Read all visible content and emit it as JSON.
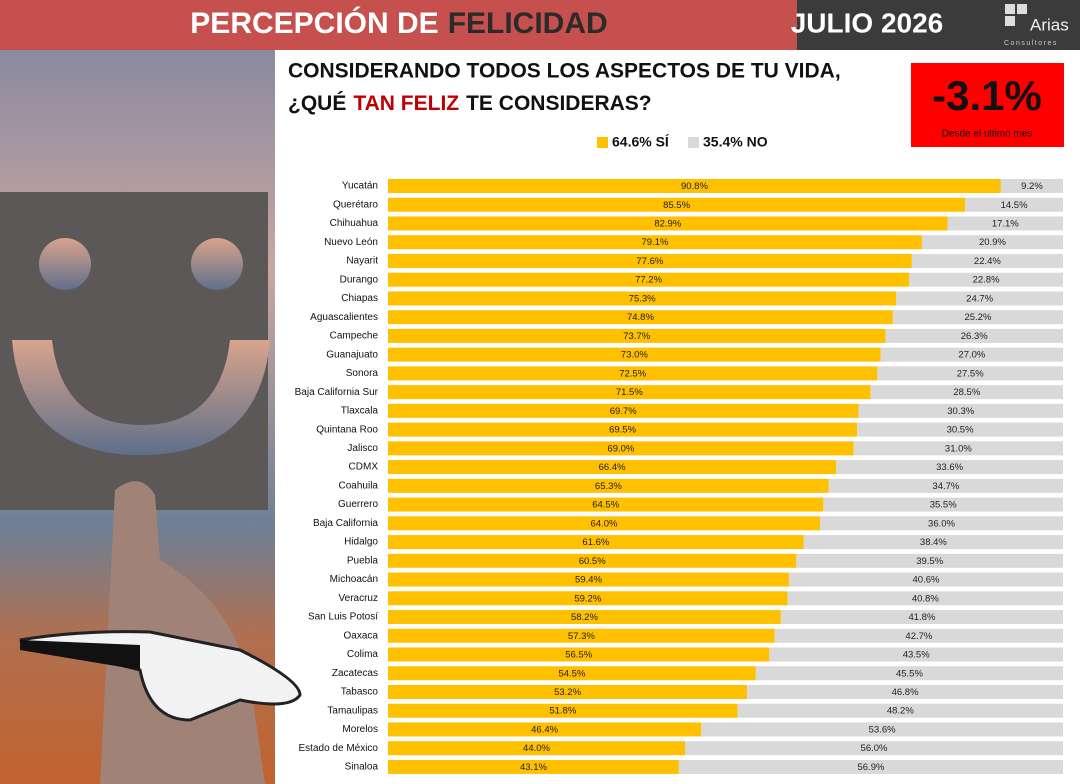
{
  "header": {
    "title": [
      "PERCEPCIÓN DE",
      "FELICIDAD"
    ],
    "date": "JULIO 2026",
    "logo": "Arias",
    "logo_sub": "Consultores"
  },
  "highlight": {
    "value": "-3.1%",
    "caption": "Desde el ultimo mes"
  },
  "chart_data": {
    "type": "stacked-bar-horizontal",
    "question": [
      "CONSIDERANDO TODOS LOS ASPECTOS DE TU VIDA,",
      "¿QUÉ",
      "TAN FELIZ",
      "TE CONSIDERAS?"
    ],
    "categories": [
      "Yucatán",
      "Querétaro",
      "Chihuahua",
      "Nuevo León",
      "Nayarit",
      "Durango",
      "Chiapas",
      "Aguascalientes",
      "Campeche",
      "Guanajuato",
      "Sonora",
      "Baja California Sur",
      "Tlaxcala",
      "Quintana Roo",
      "Jalisco",
      "CDMX",
      "Coahuila",
      "Guerrero",
      "Baja California",
      "Hidalgo",
      "Puebla",
      "Michoacán",
      "Veracruz",
      "San Luis Potosí",
      "Oaxaca",
      "Colima",
      "Zacatecas",
      "Tabasco",
      "Tamaulipas",
      "Morelos",
      "Estado de México",
      "Sinaloa"
    ],
    "xlim": [
      0,
      100
    ],
    "series": [
      {
        "name": "64.6% SÍ",
        "color": "#ffc000",
        "values": [
          90.8,
          85.5,
          82.9,
          79.1,
          77.6,
          77.2,
          75.3,
          74.8,
          73.7,
          73.0,
          72.5,
          71.5,
          69.7,
          69.5,
          69.0,
          66.4,
          65.3,
          64.5,
          64.0,
          61.6,
          60.5,
          59.4,
          59.2,
          58.2,
          57.3,
          56.5,
          54.5,
          53.2,
          51.8,
          46.4,
          44.0,
          43.1
        ],
        "value_labels": [
          "90.8%",
          "85.5%",
          "82.9%",
          "79.1%",
          "77.6%",
          "77.2%",
          "75.3%",
          "74.8%",
          "73.7%",
          "73.0%",
          "72.5%",
          "71.5%",
          "69.7%",
          "69.5%",
          "69.0%",
          "66.4%",
          "65.3%",
          "64.5%",
          "64.0%",
          "61.6%",
          "60.5%",
          "59.4%",
          "59.2%",
          "58.2%",
          "57.3%",
          "56.5%",
          "54.5%",
          "53.2%",
          "51.8%",
          "46.4%",
          "44.0%",
          "43.1%"
        ]
      },
      {
        "name": "35.4% NO",
        "color": "#d9d9d9",
        "values": [
          9.2,
          14.5,
          17.1,
          20.9,
          22.4,
          22.8,
          24.7,
          25.2,
          26.3,
          27.0,
          27.5,
          28.5,
          30.3,
          30.5,
          31.0,
          33.6,
          34.7,
          35.5,
          36.0,
          38.4,
          39.5,
          40.6,
          40.8,
          41.8,
          42.7,
          43.5,
          45.5,
          46.8,
          48.2,
          53.6,
          56.0,
          56.9
        ],
        "value_labels": [
          "9.2%",
          "14.5%",
          "17.1%",
          "20.9%",
          "22.4%",
          "22.8%",
          "24.7%",
          "25.2%",
          "26.3%",
          "27.0%",
          "27.5%",
          "28.5%",
          "30.3%",
          "30.5%",
          "31.0%",
          "33.6%",
          "34.7%",
          "35.5%",
          "36.0%",
          "38.4%",
          "39.5%",
          "40.6%",
          "40.8%",
          "41.8%",
          "42.7%",
          "43.5%",
          "45.5%",
          "46.8%",
          "48.2%",
          "53.6%",
          "56.0%",
          "56.9%"
        ]
      }
    ]
  }
}
